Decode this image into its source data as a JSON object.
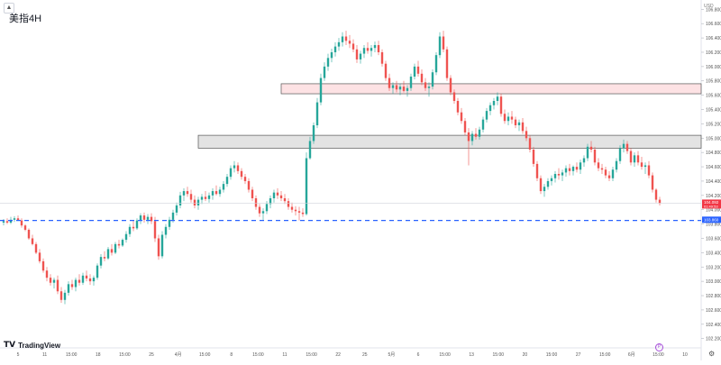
{
  "header": {
    "title": "美指4H",
    "collapse_icon": "chevron-up-icon"
  },
  "branding": {
    "logo_text": "TradingView"
  },
  "price_axis": {
    "currency": "USD"
  },
  "controls": {
    "settings_icon": "gear-icon",
    "bottom_badge_icon": "p-badge-icon"
  },
  "chart_data": {
    "type": "candlestick",
    "title": "美指4H",
    "xlabel": "",
    "ylabel": "",
    "ylim": [
      102.07,
      106.93
    ],
    "price_ticks": [
      "106.800",
      "106.600",
      "106.400",
      "106.200",
      "106.000",
      "105.800",
      "105.600",
      "105.400",
      "105.200",
      "105.000",
      "104.800",
      "104.600",
      "104.400",
      "104.200",
      "104.000",
      "103.800",
      "103.600",
      "103.400",
      "103.200",
      "103.000",
      "102.800",
      "102.600",
      "102.400",
      "102.200"
    ],
    "time_ticks": [
      "5",
      "11",
      "15:00",
      "18",
      "15:00",
      "25",
      "4月",
      "15:00",
      "8",
      "15:00",
      "11",
      "15:00",
      "22",
      "25",
      "5月",
      "6",
      "15:00",
      "13",
      "15:00",
      "20",
      "15:00",
      "27",
      "15:00",
      "6月",
      "15:00",
      "10"
    ],
    "series_up_color": "#26a69a",
    "series_down_color": "#ef5350",
    "candles": [
      [
        103.82,
        103.87,
        103.78,
        103.84
      ],
      [
        103.84,
        103.88,
        103.8,
        103.82
      ],
      [
        103.82,
        103.9,
        103.8,
        103.86
      ],
      [
        103.86,
        103.91,
        103.83,
        103.88
      ],
      [
        103.88,
        103.92,
        103.85,
        103.85
      ],
      [
        103.85,
        103.88,
        103.75,
        103.78
      ],
      [
        103.78,
        103.8,
        103.7,
        103.72
      ],
      [
        103.72,
        103.74,
        103.58,
        103.6
      ],
      [
        103.6,
        103.65,
        103.5,
        103.52
      ],
      [
        103.52,
        103.55,
        103.38,
        103.4
      ],
      [
        103.4,
        103.45,
        103.25,
        103.28
      ],
      [
        103.28,
        103.32,
        103.12,
        103.15
      ],
      [
        103.15,
        103.2,
        103.0,
        103.05
      ],
      [
        103.05,
        103.1,
        102.94,
        102.98
      ],
      [
        102.98,
        103.05,
        102.9,
        103.02
      ],
      [
        103.02,
        103.08,
        102.82,
        102.86
      ],
      [
        102.86,
        102.92,
        102.7,
        102.74
      ],
      [
        102.74,
        102.88,
        102.68,
        102.84
      ],
      [
        102.84,
        103.0,
        102.8,
        102.96
      ],
      [
        102.96,
        103.02,
        102.88,
        102.92
      ],
      [
        102.92,
        103.05,
        102.86,
        103.02
      ],
      [
        103.02,
        103.1,
        102.94,
        102.98
      ],
      [
        102.98,
        103.12,
        102.95,
        103.08
      ],
      [
        103.08,
        103.15,
        103.0,
        103.04
      ],
      [
        103.04,
        103.1,
        102.95,
        103.0
      ],
      [
        103.0,
        103.08,
        102.94,
        103.05
      ],
      [
        103.05,
        103.25,
        103.02,
        103.22
      ],
      [
        103.22,
        103.38,
        103.18,
        103.34
      ],
      [
        103.34,
        103.42,
        103.28,
        103.32
      ],
      [
        103.32,
        103.48,
        103.3,
        103.45
      ],
      [
        103.45,
        103.52,
        103.36,
        103.4
      ],
      [
        103.4,
        103.55,
        103.38,
        103.52
      ],
      [
        103.52,
        103.58,
        103.46,
        103.5
      ],
      [
        103.5,
        103.6,
        103.48,
        103.58
      ],
      [
        103.58,
        103.7,
        103.54,
        103.66
      ],
      [
        103.66,
        103.8,
        103.62,
        103.76
      ],
      [
        103.76,
        103.85,
        103.7,
        103.74
      ],
      [
        103.74,
        103.88,
        103.72,
        103.85
      ],
      [
        103.85,
        103.95,
        103.8,
        103.92
      ],
      [
        103.92,
        103.96,
        103.82,
        103.86
      ],
      [
        103.86,
        103.94,
        103.8,
        103.9
      ],
      [
        103.9,
        103.95,
        103.8,
        103.84
      ],
      [
        103.84,
        103.9,
        103.55,
        103.6
      ],
      [
        103.6,
        103.65,
        103.3,
        103.35
      ],
      [
        103.35,
        103.7,
        103.32,
        103.65
      ],
      [
        103.65,
        103.8,
        103.6,
        103.76
      ],
      [
        103.76,
        103.9,
        103.72,
        103.86
      ],
      [
        103.86,
        104.0,
        103.82,
        103.96
      ],
      [
        103.96,
        104.1,
        103.92,
        104.06
      ],
      [
        104.06,
        104.25,
        104.02,
        104.2
      ],
      [
        104.2,
        104.3,
        104.12,
        104.26
      ],
      [
        104.26,
        104.32,
        104.18,
        104.22
      ],
      [
        104.22,
        104.28,
        104.1,
        104.14
      ],
      [
        104.14,
        104.2,
        104.02,
        104.06
      ],
      [
        104.06,
        104.18,
        104.0,
        104.14
      ],
      [
        104.14,
        104.22,
        104.08,
        104.18
      ],
      [
        104.18,
        104.26,
        104.12,
        104.15
      ],
      [
        104.15,
        104.24,
        104.1,
        104.2
      ],
      [
        104.2,
        104.3,
        104.14,
        104.26
      ],
      [
        104.26,
        104.34,
        104.2,
        104.22
      ],
      [
        104.22,
        104.32,
        104.18,
        104.28
      ],
      [
        104.28,
        104.4,
        104.24,
        104.36
      ],
      [
        104.36,
        104.5,
        104.32,
        104.46
      ],
      [
        104.46,
        104.62,
        104.42,
        104.58
      ],
      [
        104.58,
        104.68,
        104.52,
        104.62
      ],
      [
        104.62,
        104.66,
        104.5,
        104.54
      ],
      [
        104.54,
        104.58,
        104.42,
        104.46
      ],
      [
        104.46,
        104.5,
        104.36,
        104.4
      ],
      [
        104.4,
        104.44,
        104.24,
        104.28
      ],
      [
        104.28,
        104.32,
        104.12,
        104.16
      ],
      [
        104.16,
        104.2,
        104.0,
        104.04
      ],
      [
        104.04,
        104.08,
        103.9,
        103.95
      ],
      [
        103.95,
        104.02,
        103.86,
        103.98
      ],
      [
        103.98,
        104.12,
        103.94,
        104.08
      ],
      [
        104.08,
        104.2,
        104.02,
        104.16
      ],
      [
        104.16,
        104.28,
        104.1,
        104.24
      ],
      [
        104.24,
        104.3,
        104.15,
        104.2
      ],
      [
        104.2,
        104.26,
        104.12,
        104.16
      ],
      [
        104.16,
        104.22,
        104.08,
        104.12
      ],
      [
        104.12,
        104.16,
        104.0,
        104.04
      ],
      [
        104.04,
        104.1,
        103.96,
        104.0
      ],
      [
        104.0,
        104.05,
        103.92,
        103.98
      ],
      [
        103.98,
        104.04,
        103.85,
        103.96
      ],
      [
        103.96,
        104.02,
        103.9,
        103.94
      ],
      [
        103.94,
        104.8,
        103.92,
        104.72
      ],
      [
        104.72,
        105.02,
        104.7,
        104.96
      ],
      [
        104.96,
        105.22,
        104.92,
        105.18
      ],
      [
        105.18,
        105.56,
        105.14,
        105.5
      ],
      [
        105.5,
        105.9,
        105.46,
        105.84
      ],
      [
        105.84,
        106.06,
        105.8,
        106.0
      ],
      [
        106.0,
        106.18,
        105.94,
        106.12
      ],
      [
        106.12,
        106.25,
        106.06,
        106.2
      ],
      [
        106.2,
        106.34,
        106.14,
        106.28
      ],
      [
        106.28,
        106.4,
        106.22,
        106.34
      ],
      [
        106.34,
        106.48,
        106.28,
        106.42
      ],
      [
        106.42,
        106.5,
        106.3,
        106.36
      ],
      [
        106.36,
        106.44,
        106.26,
        106.32
      ],
      [
        106.32,
        106.38,
        106.2,
        106.24
      ],
      [
        106.24,
        106.3,
        106.05,
        106.1
      ],
      [
        106.1,
        106.22,
        106.04,
        106.18
      ],
      [
        106.18,
        106.3,
        106.12,
        106.26
      ],
      [
        106.26,
        106.34,
        106.18,
        106.22
      ],
      [
        106.22,
        106.3,
        106.14,
        106.26
      ],
      [
        106.26,
        106.35,
        106.2,
        106.3
      ],
      [
        106.3,
        106.36,
        106.16,
        106.2
      ],
      [
        106.2,
        106.24,
        106.0,
        106.04
      ],
      [
        106.04,
        106.08,
        105.8,
        105.84
      ],
      [
        105.84,
        105.9,
        105.66,
        105.7
      ],
      [
        105.7,
        105.78,
        105.62,
        105.74
      ],
      [
        105.74,
        105.8,
        105.64,
        105.68
      ],
      [
        105.68,
        105.76,
        105.6,
        105.72
      ],
      [
        105.72,
        105.8,
        105.64,
        105.66
      ],
      [
        105.66,
        105.74,
        105.58,
        105.7
      ],
      [
        105.7,
        105.9,
        105.66,
        105.86
      ],
      [
        105.86,
        106.04,
        105.82,
        106.0
      ],
      [
        106.0,
        106.08,
        105.86,
        105.9
      ],
      [
        105.9,
        105.96,
        105.74,
        105.78
      ],
      [
        105.78,
        105.84,
        105.66,
        105.7
      ],
      [
        105.7,
        105.78,
        105.58,
        105.72
      ],
      [
        105.72,
        105.96,
        105.68,
        105.92
      ],
      [
        105.92,
        106.2,
        105.88,
        106.16
      ],
      [
        106.16,
        106.48,
        106.12,
        106.42
      ],
      [
        106.42,
        106.5,
        106.2,
        106.24
      ],
      [
        106.24,
        106.28,
        105.8,
        105.84
      ],
      [
        105.84,
        105.88,
        105.6,
        105.64
      ],
      [
        105.64,
        105.68,
        105.48,
        105.52
      ],
      [
        105.52,
        105.56,
        105.32,
        105.36
      ],
      [
        105.36,
        105.42,
        105.2,
        105.24
      ],
      [
        105.24,
        105.28,
        105.04,
        105.08
      ],
      [
        105.08,
        105.14,
        104.62,
        104.96
      ],
      [
        104.96,
        105.1,
        104.9,
        105.06
      ],
      [
        105.06,
        105.14,
        104.98,
        105.02
      ],
      [
        105.02,
        105.16,
        104.98,
        105.12
      ],
      [
        105.12,
        105.3,
        105.08,
        105.26
      ],
      [
        105.26,
        105.42,
        105.22,
        105.38
      ],
      [
        105.38,
        105.5,
        105.32,
        105.46
      ],
      [
        105.46,
        105.56,
        105.4,
        105.52
      ],
      [
        105.52,
        105.64,
        105.46,
        105.58
      ],
      [
        105.58,
        105.62,
        105.3,
        105.34
      ],
      [
        105.34,
        105.4,
        105.2,
        105.24
      ],
      [
        105.24,
        105.36,
        105.18,
        105.3
      ],
      [
        105.3,
        105.38,
        105.2,
        105.26
      ],
      [
        105.26,
        105.3,
        105.14,
        105.18
      ],
      [
        105.18,
        105.26,
        105.1,
        105.22
      ],
      [
        105.22,
        105.28,
        105.06,
        105.1
      ],
      [
        105.1,
        105.16,
        104.96,
        105.0
      ],
      [
        105.0,
        105.04,
        104.8,
        104.84
      ],
      [
        104.84,
        104.88,
        104.6,
        104.64
      ],
      [
        104.64,
        104.68,
        104.4,
        104.44
      ],
      [
        104.44,
        104.48,
        104.22,
        104.26
      ],
      [
        104.26,
        104.36,
        104.18,
        104.32
      ],
      [
        104.32,
        104.44,
        104.28,
        104.4
      ],
      [
        104.4,
        104.48,
        104.34,
        104.44
      ],
      [
        104.44,
        104.54,
        104.38,
        104.5
      ],
      [
        104.5,
        104.58,
        104.42,
        104.48
      ],
      [
        104.48,
        104.56,
        104.4,
        104.52
      ],
      [
        104.52,
        104.62,
        104.46,
        104.58
      ],
      [
        104.58,
        104.64,
        104.48,
        104.54
      ],
      [
        104.54,
        104.62,
        104.48,
        104.6
      ],
      [
        104.6,
        104.66,
        104.52,
        104.56
      ],
      [
        104.56,
        104.7,
        104.5,
        104.66
      ],
      [
        104.66,
        104.76,
        104.6,
        104.72
      ],
      [
        104.72,
        104.92,
        104.68,
        104.88
      ],
      [
        104.88,
        104.96,
        104.8,
        104.84
      ],
      [
        104.84,
        104.88,
        104.62,
        104.66
      ],
      [
        104.66,
        104.72,
        104.54,
        104.58
      ],
      [
        104.58,
        104.64,
        104.5,
        104.56
      ],
      [
        104.56,
        104.6,
        104.44,
        104.48
      ],
      [
        104.48,
        104.54,
        104.4,
        104.44
      ],
      [
        104.44,
        104.6,
        104.4,
        104.56
      ],
      [
        104.56,
        104.72,
        104.52,
        104.68
      ],
      [
        104.68,
        104.9,
        104.64,
        104.86
      ],
      [
        104.86,
        104.98,
        104.8,
        104.92
      ],
      [
        104.92,
        104.96,
        104.78,
        104.82
      ],
      [
        104.82,
        104.86,
        104.62,
        104.66
      ],
      [
        104.66,
        104.8,
        104.6,
        104.76
      ],
      [
        104.76,
        104.82,
        104.62,
        104.66
      ],
      [
        104.66,
        104.74,
        104.56,
        104.6
      ],
      [
        104.6,
        104.66,
        104.5,
        104.62
      ],
      [
        104.62,
        104.68,
        104.44,
        104.48
      ],
      [
        104.48,
        104.52,
        104.24,
        104.28
      ],
      [
        104.28,
        104.3,
        104.1,
        104.14
      ],
      [
        104.14,
        104.18,
        104.06,
        104.09
      ]
    ],
    "resistance_zone": {
      "low": 105.62,
      "high": 105.76,
      "label": ""
    },
    "support_zone": {
      "low": 104.86,
      "high": 105.04,
      "label": ""
    },
    "support_line": {
      "price": 103.85,
      "style": "dashed"
    },
    "current_price": {
      "value": "104.092",
      "sub": "01:49:53"
    },
    "support_price_label": {
      "value": "103.860"
    }
  }
}
